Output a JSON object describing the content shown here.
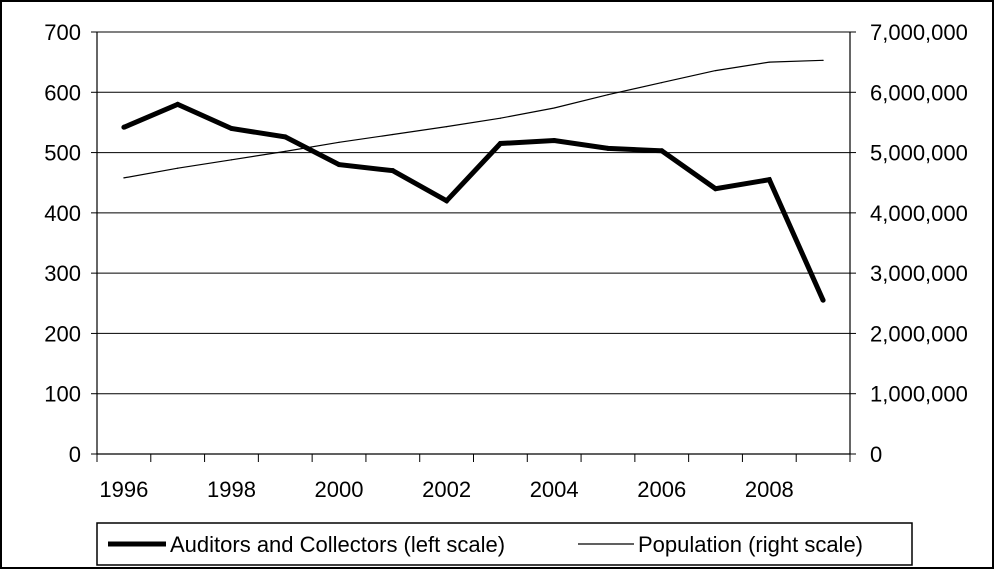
{
  "chart_data": {
    "type": "line",
    "title": "",
    "x": [
      1996,
      1997,
      1998,
      1999,
      2000,
      2001,
      2002,
      2003,
      2004,
      2005,
      2006,
      2007,
      2008,
      2009
    ],
    "x_tick_labels": [
      "1996",
      "1998",
      "2000",
      "2002",
      "2004",
      "2006",
      "2008"
    ],
    "left_axis": {
      "ylim": [
        0,
        700
      ],
      "ticks": [
        0,
        100,
        200,
        300,
        400,
        500,
        600,
        700
      ],
      "tick_labels": [
        "0",
        "100",
        "200",
        "300",
        "400",
        "500",
        "600",
        "700"
      ]
    },
    "right_axis": {
      "ylim": [
        0,
        7000000
      ],
      "ticks": [
        0,
        1000000,
        2000000,
        3000000,
        4000000,
        5000000,
        6000000,
        7000000
      ],
      "tick_labels": [
        "0",
        "1,000,000",
        "2,000,000",
        "3,000,000",
        "4,000,000",
        "5,000,000",
        "6,000,000",
        "7,000,000"
      ]
    },
    "series": [
      {
        "name": "Auditors and Collectors (left scale)",
        "axis": "left",
        "line_style": "thick",
        "values": [
          542,
          580,
          540,
          526,
          480,
          470,
          420,
          515,
          520,
          507,
          503,
          440,
          455,
          255
        ]
      },
      {
        "name": "Population (right scale)",
        "axis": "right",
        "line_style": "thin",
        "values": [
          4580000,
          4740000,
          4880000,
          5020000,
          5170000,
          5300000,
          5430000,
          5570000,
          5740000,
          5960000,
          6160000,
          6360000,
          6500000,
          6530000
        ]
      }
    ],
    "grid": true,
    "legend_position": "bottom"
  }
}
